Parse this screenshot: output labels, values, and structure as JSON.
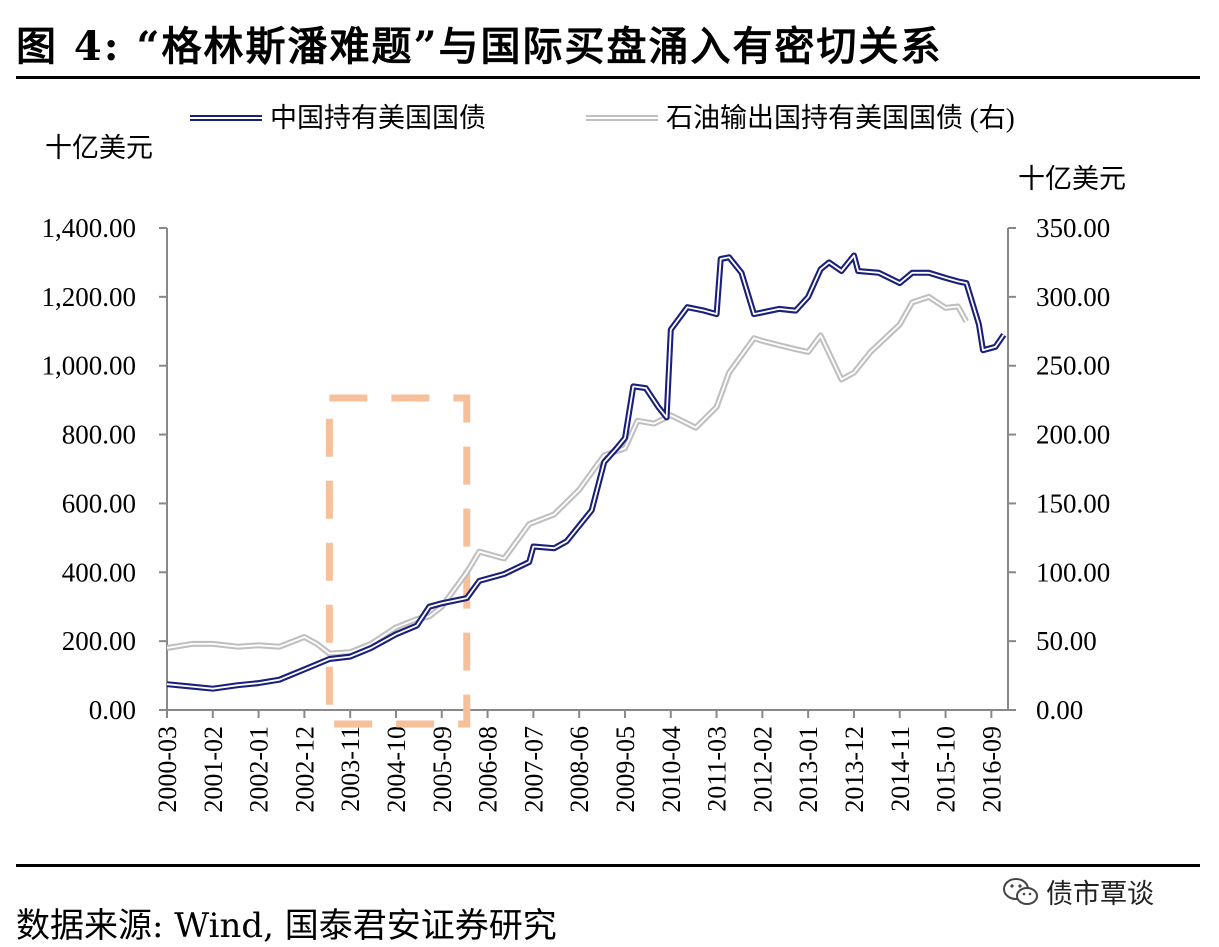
{
  "title": "图  4: “格林斯潘难题”与国际买盘涌入有密切关系",
  "source": "数据来源: Wind, 国泰君安证券研究",
  "watermark": {
    "text": "债市覃谈",
    "icon": "wechat-icon"
  },
  "chart_data": {
    "type": "line",
    "legend_placement": "top",
    "grid": false,
    "y_left": {
      "unit_label": "十亿美元",
      "range": [
        0,
        1400
      ],
      "ticks": [
        "0.00",
        "200.00",
        "400.00",
        "600.00",
        "800.00",
        "1,000.00",
        "1,200.00",
        "1,400.00"
      ]
    },
    "y_right": {
      "unit_label": "十亿美元",
      "range": [
        0,
        350
      ],
      "ticks": [
        "0.00",
        "50.00",
        "100.00",
        "150.00",
        "200.00",
        "250.00",
        "300.00",
        "350.00"
      ]
    },
    "x_tick_labels": [
      "2000-03",
      "2001-02",
      "2002-01",
      "2002-12",
      "2003-11",
      "2004-10",
      "2005-09",
      "2006-08",
      "2007-07",
      "2008-06",
      "2009-05",
      "2010-04",
      "2011-03",
      "2012-02",
      "2013-01",
      "2013-12",
      "2014-11",
      "2015-10",
      "2016-09"
    ],
    "highlight_period": {
      "from": "2003-06",
      "to": "2006-03"
    },
    "series": [
      {
        "name": "中国持有美国国债",
        "axis": "left",
        "color": "#1a1f7a",
        "points": [
          [
            "2000-03",
            75
          ],
          [
            "2000-09",
            68
          ],
          [
            "2001-02",
            62
          ],
          [
            "2001-08",
            72
          ],
          [
            "2002-01",
            78
          ],
          [
            "2002-06",
            88
          ],
          [
            "2002-12",
            118
          ],
          [
            "2003-06",
            148
          ],
          [
            "2003-11",
            155
          ],
          [
            "2004-04",
            180
          ],
          [
            "2004-10",
            220
          ],
          [
            "2005-03",
            245
          ],
          [
            "2005-06",
            300
          ],
          [
            "2005-09",
            310
          ],
          [
            "2006-03",
            325
          ],
          [
            "2006-06",
            375
          ],
          [
            "2006-12",
            395
          ],
          [
            "2007-06",
            430
          ],
          [
            "2007-07",
            475
          ],
          [
            "2007-12",
            470
          ],
          [
            "2008-03",
            490
          ],
          [
            "2008-09",
            580
          ],
          [
            "2008-12",
            720
          ],
          [
            "2009-03",
            760
          ],
          [
            "2009-05",
            790
          ],
          [
            "2009-07",
            940
          ],
          [
            "2009-10",
            935
          ],
          [
            "2010-01",
            880
          ],
          [
            "2010-03",
            850
          ],
          [
            "2010-04",
            1105
          ],
          [
            "2010-08",
            1170
          ],
          [
            "2010-12",
            1160
          ],
          [
            "2011-03",
            1150
          ],
          [
            "2011-04",
            1310
          ],
          [
            "2011-06",
            1315
          ],
          [
            "2011-09",
            1270
          ],
          [
            "2011-12",
            1150
          ],
          [
            "2012-02",
            1155
          ],
          [
            "2012-06",
            1165
          ],
          [
            "2012-10",
            1160
          ],
          [
            "2013-01",
            1200
          ],
          [
            "2013-04",
            1280
          ],
          [
            "2013-06",
            1300
          ],
          [
            "2013-09",
            1275
          ],
          [
            "2013-12",
            1320
          ],
          [
            "2014-01",
            1275
          ],
          [
            "2014-06",
            1270
          ],
          [
            "2014-11",
            1240
          ],
          [
            "2015-02",
            1270
          ],
          [
            "2015-06",
            1270
          ],
          [
            "2015-10",
            1255
          ],
          [
            "2016-01",
            1245
          ],
          [
            "2016-03",
            1240
          ],
          [
            "2016-06",
            1120
          ],
          [
            "2016-07",
            1045
          ],
          [
            "2016-10",
            1055
          ],
          [
            "2016-12",
            1090
          ]
        ]
      },
      {
        "name": "石油输出国持有美国国债 (右)",
        "axis": "right",
        "color": "#c0c0c0",
        "points": [
          [
            "2000-03",
            45
          ],
          [
            "2000-09",
            48
          ],
          [
            "2001-02",
            48
          ],
          [
            "2001-08",
            46
          ],
          [
            "2002-01",
            47
          ],
          [
            "2002-06",
            46
          ],
          [
            "2002-12",
            53
          ],
          [
            "2003-03",
            48
          ],
          [
            "2003-06",
            41
          ],
          [
            "2003-11",
            42
          ],
          [
            "2004-04",
            48
          ],
          [
            "2004-10",
            60
          ],
          [
            "2005-03",
            66
          ],
          [
            "2005-06",
            68
          ],
          [
            "2005-09",
            75
          ],
          [
            "2006-03",
            100
          ],
          [
            "2006-06",
            115
          ],
          [
            "2006-12",
            110
          ],
          [
            "2007-06",
            135
          ],
          [
            "2007-12",
            142
          ],
          [
            "2008-06",
            160
          ],
          [
            "2008-12",
            185
          ],
          [
            "2009-05",
            190
          ],
          [
            "2009-08",
            210
          ],
          [
            "2009-12",
            208
          ],
          [
            "2010-04",
            214
          ],
          [
            "2010-10",
            205
          ],
          [
            "2011-03",
            220
          ],
          [
            "2011-06",
            245
          ],
          [
            "2011-12",
            270
          ],
          [
            "2012-02",
            268
          ],
          [
            "2012-06",
            265
          ],
          [
            "2012-10",
            262
          ],
          [
            "2013-01",
            260
          ],
          [
            "2013-04",
            272
          ],
          [
            "2013-09",
            240
          ],
          [
            "2013-12",
            245
          ],
          [
            "2014-04",
            260
          ],
          [
            "2014-11",
            280
          ],
          [
            "2015-02",
            296
          ],
          [
            "2015-06",
            300
          ],
          [
            "2015-10",
            292
          ],
          [
            "2016-01",
            293
          ],
          [
            "2016-03",
            282
          ]
        ]
      }
    ]
  }
}
